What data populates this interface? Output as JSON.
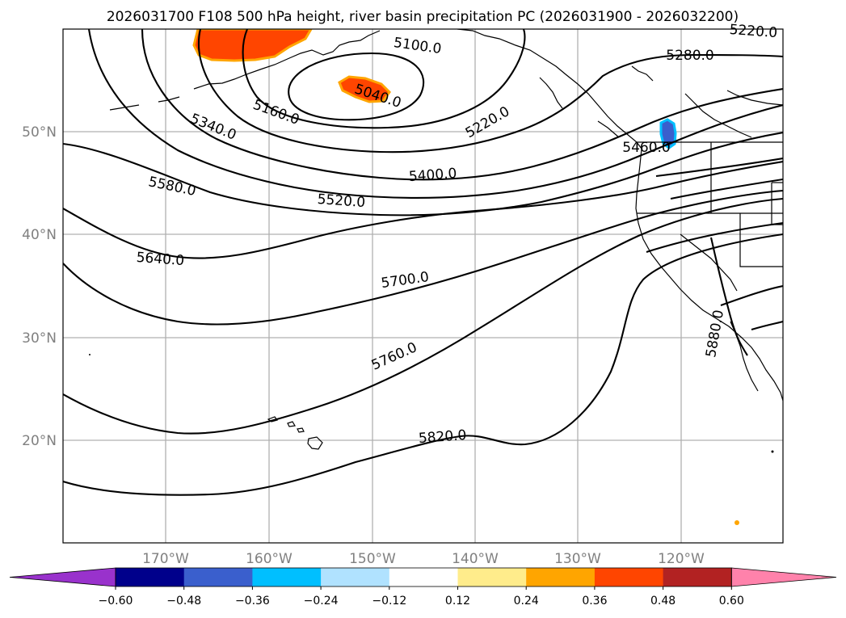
{
  "title": "2026031700 F108 500 hPa height, river basin precipitation PC (2026031900 - 2026032200)",
  "map": {
    "lon_labels": [
      "170°W",
      "160°W",
      "150°W",
      "140°W",
      "130°W",
      "120°W"
    ],
    "lat_labels": [
      "50°N",
      "40°N",
      "30°N",
      "20°N"
    ],
    "gridlines": true
  },
  "contour_labels": [
    {
      "text": "5100.0",
      "name": "contour-label-5100"
    },
    {
      "text": "5220.0",
      "name": "contour-label-5220-top"
    },
    {
      "text": "5280.0",
      "name": "contour-label-5280"
    },
    {
      "text": "5040.0",
      "name": "contour-label-5040"
    },
    {
      "text": "5160.0",
      "name": "contour-label-5160"
    },
    {
      "text": "5340.0",
      "name": "contour-label-5340"
    },
    {
      "text": "5220.0",
      "name": "contour-label-5220"
    },
    {
      "text": "5460.0",
      "name": "contour-label-5460"
    },
    {
      "text": "5580.0",
      "name": "contour-label-5580"
    },
    {
      "text": "5400.0",
      "name": "contour-label-5400"
    },
    {
      "text": "5520.0",
      "name": "contour-label-5520"
    },
    {
      "text": "5640.0",
      "name": "contour-label-5640"
    },
    {
      "text": "5700.0",
      "name": "contour-label-5700"
    },
    {
      "text": "5880.0",
      "name": "contour-label-5880"
    },
    {
      "text": "5760.0",
      "name": "contour-label-5760"
    },
    {
      "text": "5820.0",
      "name": "contour-label-5820"
    }
  ],
  "colorbar": {
    "ticks": [
      "−0.60",
      "−0.48",
      "−0.36",
      "−0.24",
      "−0.12",
      "0.12",
      "0.24",
      "0.36",
      "0.48",
      "0.60"
    ],
    "colors": [
      "#9932cc",
      "#00008b",
      "#3a5fcd",
      "#00bfff",
      "#b0e2ff",
      "#ffffff",
      "#ffec8b",
      "#ffa500",
      "#ff4500",
      "#b22222",
      "#ff82ab"
    ]
  }
}
